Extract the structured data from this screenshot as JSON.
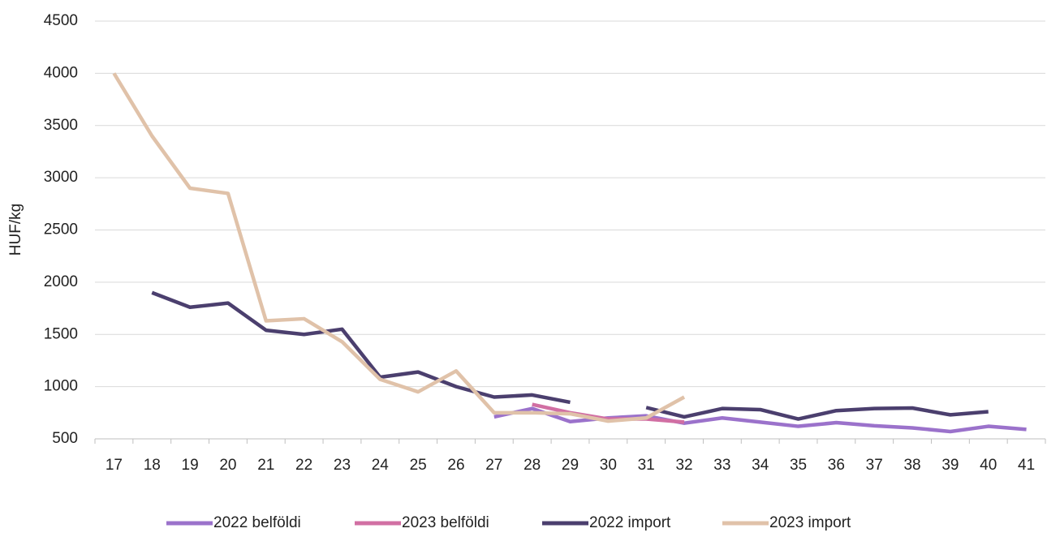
{
  "chart_data": {
    "type": "line",
    "ylabel": "HUF/kg",
    "categories": [
      "17",
      "18",
      "19",
      "20",
      "21",
      "22",
      "23",
      "24",
      "25",
      "26",
      "27",
      "28",
      "29",
      "30",
      "31",
      "32",
      "33",
      "34",
      "35",
      "36",
      "37",
      "38",
      "39",
      "40",
      "41"
    ],
    "series": [
      {
        "name": "2022 belföldi",
        "color": "#9b72cb",
        "values": [
          null,
          null,
          null,
          null,
          null,
          null,
          null,
          null,
          null,
          null,
          710,
          790,
          665,
          700,
          720,
          650,
          700,
          660,
          620,
          655,
          625,
          605,
          570,
          620,
          590
        ]
      },
      {
        "name": "2023 belföldi",
        "color": "#d16fa3",
        "values": [
          null,
          null,
          null,
          null,
          null,
          null,
          null,
          null,
          null,
          null,
          null,
          830,
          750,
          690,
          690,
          660,
          null,
          null,
          null,
          null,
          null,
          null,
          null,
          null,
          null
        ]
      },
      {
        "name": "2022 import",
        "color": "#4b3f6e",
        "values": [
          null,
          1900,
          1760,
          1800,
          1540,
          1500,
          1550,
          1090,
          1140,
          1000,
          900,
          920,
          850,
          null,
          800,
          710,
          790,
          780,
          690,
          770,
          790,
          795,
          730,
          760,
          null
        ]
      },
      {
        "name": "2023 import",
        "color": "#e0c2a9",
        "values": [
          4000,
          3400,
          2900,
          2850,
          1630,
          1650,
          1430,
          1070,
          950,
          1150,
          750,
          750,
          740,
          670,
          700,
          900,
          null,
          null,
          null,
          null,
          null,
          null,
          null,
          null,
          null
        ]
      }
    ],
    "ylim": [
      500,
      4500
    ],
    "yticks": [
      500,
      1000,
      1500,
      2000,
      2500,
      3000,
      3500,
      4000,
      4500
    ],
    "grid": true,
    "legend": "bottom"
  }
}
